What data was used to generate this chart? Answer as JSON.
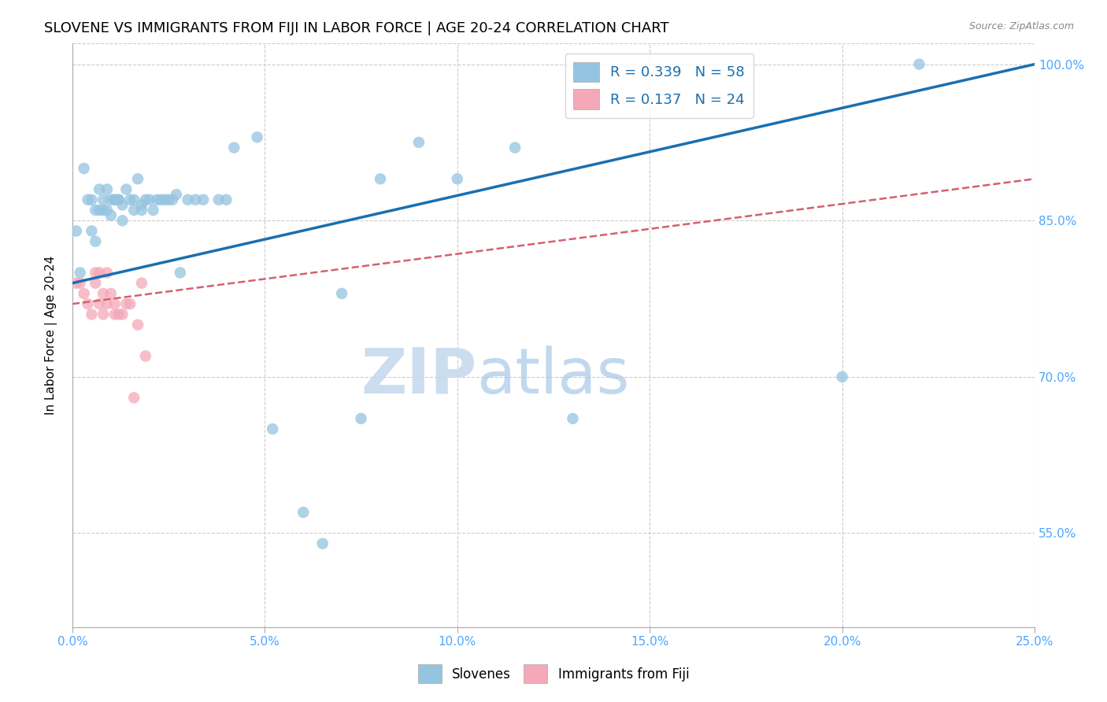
{
  "title": "SLOVENE VS IMMIGRANTS FROM FIJI IN LABOR FORCE | AGE 20-24 CORRELATION CHART",
  "source": "Source: ZipAtlas.com",
  "ylabel": "In Labor Force | Age 20-24",
  "xlim": [
    0.0,
    0.25
  ],
  "ylim": [
    0.46,
    1.02
  ],
  "yticks": [
    0.55,
    0.7,
    0.85,
    1.0
  ],
  "ytick_labels": [
    "55.0%",
    "70.0%",
    "85.0%",
    "100.0%"
  ],
  "xticks": [
    0.0,
    0.05,
    0.1,
    0.15,
    0.2,
    0.25
  ],
  "xtick_labels": [
    "0.0%",
    "5.0%",
    "10.0%",
    "15.0%",
    "20.0%",
    "25.0%"
  ],
  "blue_color": "#94c4e0",
  "pink_color": "#f4a8b8",
  "blue_line_color": "#1a6faf",
  "pink_line_color": "#d46070",
  "legend_blue_label": "R = 0.339   N = 58",
  "legend_pink_label": "R = 0.137   N = 24",
  "legend_slovene": "Slovenes",
  "legend_fiji": "Immigrants from Fiji",
  "blue_line": [
    0.0,
    0.79,
    0.25,
    1.0
  ],
  "pink_line": [
    0.0,
    0.77,
    0.25,
    0.89
  ],
  "blue_x": [
    0.001,
    0.002,
    0.003,
    0.004,
    0.005,
    0.005,
    0.006,
    0.006,
    0.007,
    0.007,
    0.008,
    0.008,
    0.009,
    0.009,
    0.01,
    0.01,
    0.011,
    0.011,
    0.012,
    0.012,
    0.013,
    0.013,
    0.014,
    0.015,
    0.016,
    0.016,
    0.017,
    0.018,
    0.018,
    0.019,
    0.02,
    0.021,
    0.022,
    0.023,
    0.024,
    0.025,
    0.026,
    0.027,
    0.028,
    0.03,
    0.032,
    0.034,
    0.038,
    0.04,
    0.042,
    0.048,
    0.052,
    0.06,
    0.065,
    0.07,
    0.075,
    0.08,
    0.09,
    0.1,
    0.115,
    0.13,
    0.2,
    0.22
  ],
  "blue_y": [
    0.84,
    0.8,
    0.9,
    0.87,
    0.87,
    0.84,
    0.86,
    0.83,
    0.88,
    0.86,
    0.86,
    0.87,
    0.88,
    0.86,
    0.87,
    0.855,
    0.87,
    0.87,
    0.87,
    0.87,
    0.865,
    0.85,
    0.88,
    0.87,
    0.87,
    0.86,
    0.89,
    0.86,
    0.865,
    0.87,
    0.87,
    0.86,
    0.87,
    0.87,
    0.87,
    0.87,
    0.87,
    0.875,
    0.8,
    0.87,
    0.87,
    0.87,
    0.87,
    0.87,
    0.92,
    0.93,
    0.65,
    0.57,
    0.54,
    0.78,
    0.66,
    0.89,
    0.925,
    0.89,
    0.92,
    0.66,
    0.7,
    1.0
  ],
  "pink_x": [
    0.001,
    0.002,
    0.003,
    0.004,
    0.005,
    0.006,
    0.006,
    0.007,
    0.007,
    0.008,
    0.008,
    0.009,
    0.009,
    0.01,
    0.011,
    0.011,
    0.012,
    0.013,
    0.014,
    0.015,
    0.016,
    0.017,
    0.018,
    0.019
  ],
  "pink_y": [
    0.79,
    0.79,
    0.78,
    0.77,
    0.76,
    0.79,
    0.8,
    0.77,
    0.8,
    0.76,
    0.78,
    0.77,
    0.8,
    0.78,
    0.77,
    0.76,
    0.76,
    0.76,
    0.77,
    0.77,
    0.68,
    0.75,
    0.79,
    0.72
  ],
  "background_color": "#ffffff",
  "grid_color": "#cccccc",
  "title_fontsize": 13,
  "label_fontsize": 11,
  "tick_fontsize": 11,
  "tick_color": "#4da6ff"
}
